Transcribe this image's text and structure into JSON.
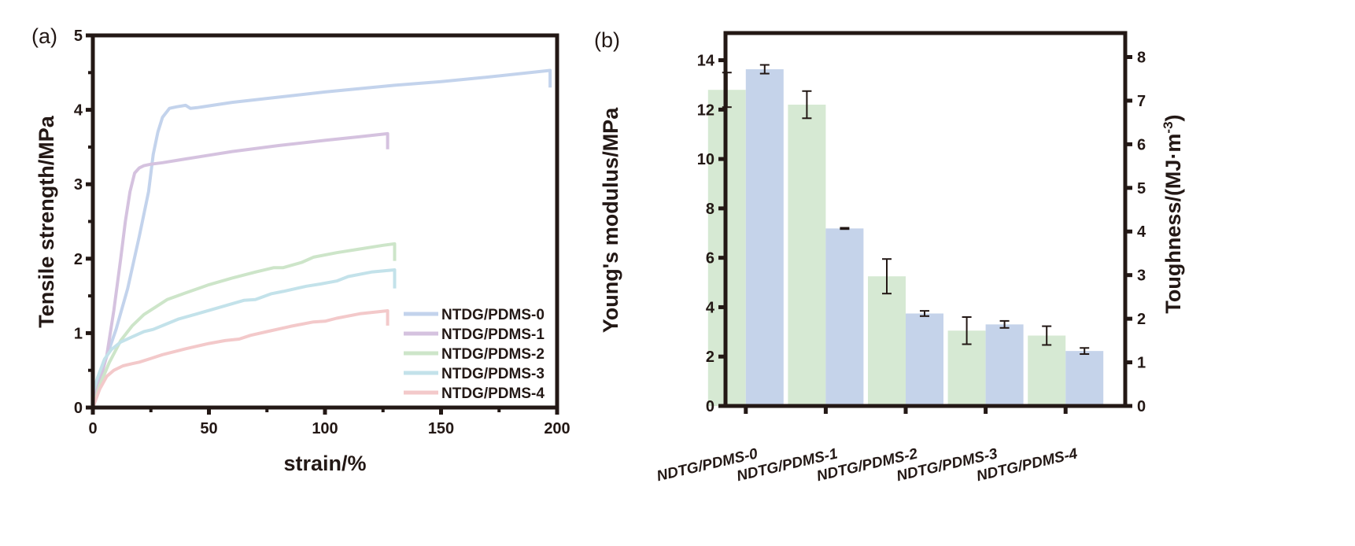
{
  "chart_data": [
    {
      "type": "line",
      "panel_label": "(a)",
      "title": "",
      "xlabel": "strain/%",
      "ylabel": "Tensile strength/MPa",
      "xlim": [
        0,
        200
      ],
      "ylim": [
        0,
        5
      ],
      "xticks": [
        "0",
        "50",
        "100",
        "150",
        "200"
      ],
      "yticks": [
        "0",
        "1",
        "2",
        "3",
        "4",
        "5"
      ],
      "grid": false,
      "legend_position": "bottom-right",
      "series": [
        {
          "name": "NTDG/PDMS-0",
          "color": "#c3d3ec",
          "x": [
            0,
            2,
            5,
            10,
            15,
            20,
            24,
            26,
            28,
            30,
            33,
            36,
            40,
            42,
            45,
            60,
            80,
            100,
            130,
            150,
            170,
            197,
            197
          ],
          "y": [
            0.15,
            0.35,
            0.6,
            1.05,
            1.6,
            2.3,
            2.9,
            3.4,
            3.7,
            3.9,
            4.02,
            4.04,
            4.06,
            4.02,
            4.03,
            4.1,
            4.17,
            4.24,
            4.33,
            4.38,
            4.44,
            4.53,
            4.3
          ]
        },
        {
          "name": "NTDG/PDMS-1",
          "color": "#d5c2df",
          "x": [
            0,
            3,
            6,
            9,
            12,
            14,
            16,
            18,
            20,
            22,
            25,
            30,
            40,
            50,
            60,
            80,
            100,
            115,
            127,
            127
          ],
          "y": [
            0.1,
            0.35,
            0.7,
            1.3,
            2.0,
            2.5,
            2.9,
            3.15,
            3.22,
            3.25,
            3.27,
            3.29,
            3.34,
            3.39,
            3.44,
            3.52,
            3.59,
            3.64,
            3.68,
            3.47
          ]
        },
        {
          "name": "NTDG/PDMS-2",
          "color": "#cde5c9",
          "x": [
            0,
            3,
            7,
            12,
            17,
            22,
            27,
            32,
            40,
            50,
            60,
            70,
            78,
            82,
            90,
            95,
            105,
            115,
            125,
            130,
            130
          ],
          "y": [
            0,
            0.3,
            0.6,
            0.9,
            1.1,
            1.25,
            1.35,
            1.45,
            1.54,
            1.65,
            1.74,
            1.82,
            1.88,
            1.88,
            1.95,
            2.02,
            2.08,
            2.13,
            2.18,
            2.2,
            1.97
          ]
        },
        {
          "name": "NTDG/PDMS-3",
          "color": "#c3e2ea",
          "x": [
            0,
            2,
            5,
            8,
            12,
            17,
            22,
            26,
            30,
            37,
            45,
            55,
            65,
            70,
            77,
            82,
            92,
            98,
            105,
            110,
            120,
            130,
            130
          ],
          "y": [
            0.2,
            0.4,
            0.65,
            0.78,
            0.88,
            0.95,
            1.02,
            1.05,
            1.1,
            1.19,
            1.26,
            1.35,
            1.44,
            1.45,
            1.53,
            1.56,
            1.63,
            1.66,
            1.7,
            1.76,
            1.82,
            1.85,
            1.6
          ]
        },
        {
          "name": "NTDG/PDMS-4",
          "color": "#f3c9ca",
          "x": [
            0,
            3,
            6,
            9,
            13,
            17,
            20,
            25,
            30,
            40,
            50,
            57,
            63,
            68,
            75,
            85,
            95,
            100,
            105,
            115,
            127,
            127
          ],
          "y": [
            0,
            0.25,
            0.42,
            0.5,
            0.56,
            0.59,
            0.61,
            0.66,
            0.71,
            0.79,
            0.86,
            0.9,
            0.92,
            0.97,
            1.02,
            1.09,
            1.15,
            1.16,
            1.2,
            1.26,
            1.3,
            1.1
          ]
        }
      ]
    },
    {
      "type": "bar",
      "panel_label": "(b)",
      "title": "",
      "xlabel": "",
      "ylabel": "Young's modulus/MPa",
      "ylabel_right": "Toughness/(MJ·m",
      "ylabel_right_sup": "-3",
      "ylabel_right_end": ")",
      "categories": [
        "NDTG/PDMS-0",
        "NDTG/PDMS-1",
        "NDTG/PDMS-2",
        "NDTG/PDMS-3",
        "NDTG/PDMS-4"
      ],
      "ylim": [
        0,
        15.1
      ],
      "ylim_right": [
        0,
        8.55
      ],
      "yticks": [
        "0",
        "2",
        "4",
        "6",
        "8",
        "10",
        "12",
        "14"
      ],
      "yticks_right": [
        "0",
        "1",
        "2",
        "3",
        "4",
        "5",
        "6",
        "7",
        "8"
      ],
      "grid": false,
      "series": [
        {
          "name": "Young's modulus",
          "axis": "left",
          "color": "#d6e9d3",
          "values": [
            12.8,
            12.2,
            5.25,
            3.05,
            2.85
          ],
          "errors": [
            0.7,
            0.55,
            0.7,
            0.55,
            0.38
          ]
        },
        {
          "name": "Toughness",
          "axis": "right",
          "color": "#c5d3ea",
          "values": [
            7.72,
            4.07,
            2.12,
            1.87,
            1.26
          ],
          "errors": [
            0.1,
            0.015,
            0.06,
            0.08,
            0.07
          ]
        }
      ]
    }
  ]
}
